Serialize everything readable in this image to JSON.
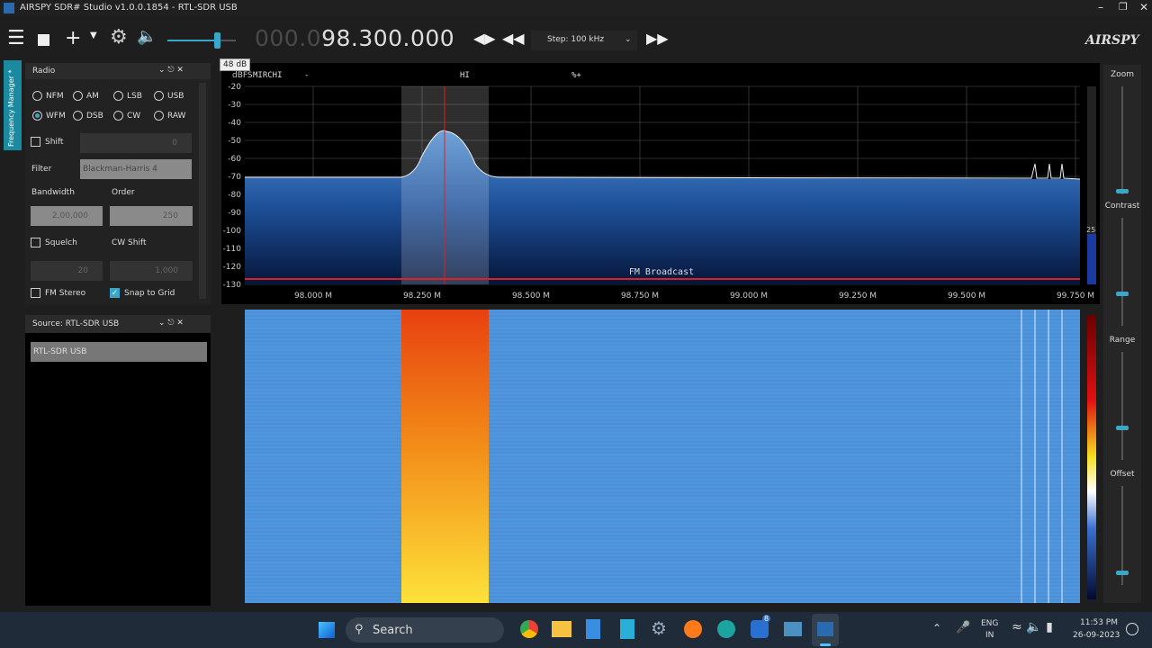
{
  "window": {
    "title": "AIRSPY SDR# Studio v1.0.0.1854 - RTL-SDR USB"
  },
  "toolbar": {
    "volume_tooltip": "48 dB",
    "frequency_dim": "000.0",
    "frequency": "98.300.000",
    "step": "Step: 100 kHz",
    "logo": "AIRSPY"
  },
  "side_tab": "Frequency Manager *",
  "radio_panel": {
    "title": "Radio",
    "modes": [
      "NFM",
      "AM",
      "LSB",
      "USB",
      "WFM",
      "DSB",
      "CW",
      "RAW"
    ],
    "shift_label": "Shift",
    "shift_value": "0",
    "filter_label": "Filter",
    "filter": "Blackman-Harris 4",
    "bandwidth_label": "Bandwidth",
    "bandwidth": "2,00,000",
    "order_label": "Order",
    "order": "250",
    "squelch_label": "Squelch",
    "squelch": "20",
    "cw_shift_label": "CW Shift",
    "cw_shift": "1,000",
    "fm_stereo_label": "FM Stereo",
    "snap_label": "Snap to Grid"
  },
  "source_panel": {
    "title": "Source: RTL-SDR USB",
    "device": "RTL-SDR USB"
  },
  "spectrum": {
    "unit": "dBFS",
    "rds": [
      "MIRCHI",
      "-",
      "HI",
      "%+"
    ],
    "band_label": "FM Broadcast",
    "y_labels": [
      "-20",
      "-30",
      "-40",
      "-50",
      "-60",
      "-70",
      "-80",
      "-90",
      "-100",
      "-110",
      "-120",
      "-130"
    ],
    "x_labels": [
      "98.000 M",
      "98.250 M",
      "98.500 M",
      "98.750 M",
      "99.000 M",
      "99.250 M",
      "99.500 M",
      "99.750 M"
    ],
    "side_value": "25"
  },
  "right_panel": {
    "labels": [
      "Zoom",
      "Contrast",
      "Range",
      "Offset"
    ]
  },
  "taskbar": {
    "search": "Search",
    "badge": "8",
    "lang": "ENG",
    "region": "IN",
    "time": "11:53 PM",
    "date": "26-09-2023"
  }
}
